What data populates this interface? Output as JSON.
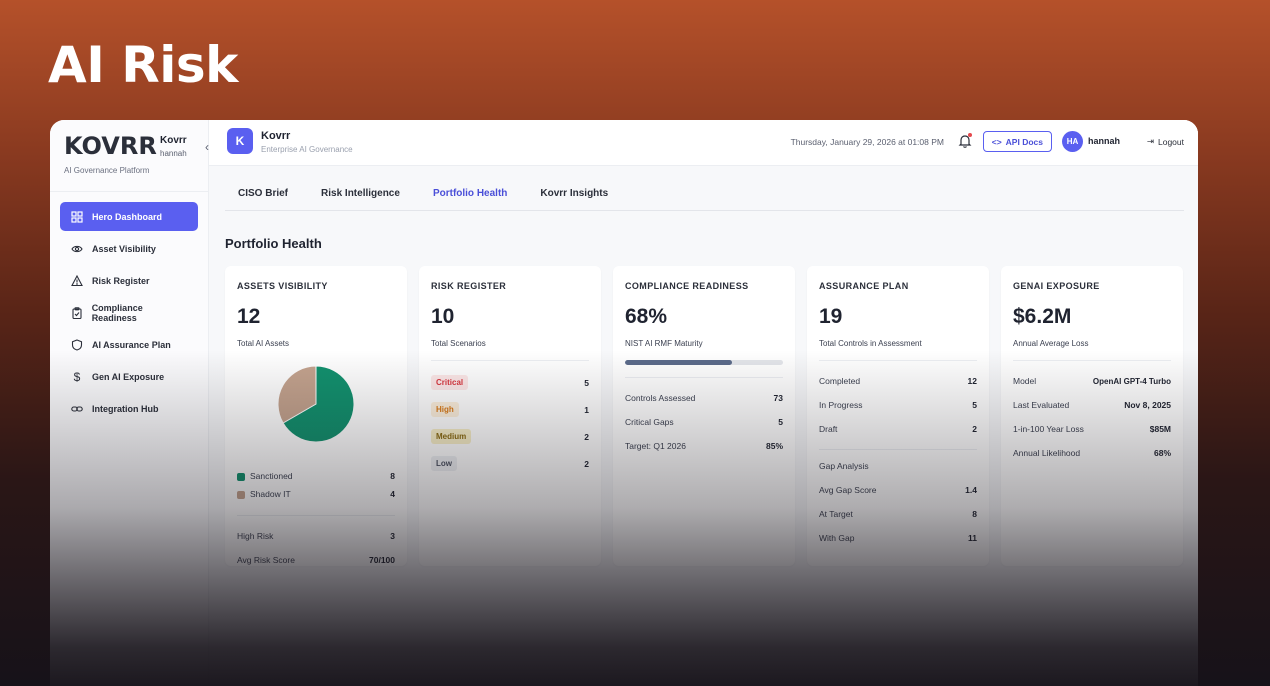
{
  "hero": {
    "title": "AI Risk"
  },
  "sidebar": {
    "logo": "KOVRR",
    "brand_name": "Kovrr",
    "brand_user": "hannah",
    "brand_sub": "AI Governance Platform",
    "items": [
      {
        "label": "Hero Dashboard",
        "icon": "grid-icon"
      },
      {
        "label": "Asset Visibility",
        "icon": "eye-icon"
      },
      {
        "label": "Risk Register",
        "icon": "warning-icon"
      },
      {
        "label": "Compliance Readiness",
        "icon": "clipboard-icon"
      },
      {
        "label": "AI Assurance Plan",
        "icon": "shield-icon"
      },
      {
        "label": "Gen AI Exposure",
        "icon": "dollar-icon"
      },
      {
        "label": "Integration Hub",
        "icon": "link-icon"
      }
    ]
  },
  "topbar": {
    "ws_initial": "K",
    "ws_name": "Kovrr",
    "ws_sub": "Enterprise AI Governance",
    "date": "Thursday, January 29, 2026 at 01:08 PM",
    "api_label": "API Docs",
    "avatar": "HA",
    "username": "hannah",
    "logout": "Logout"
  },
  "tabs": [
    "CISO Brief",
    "Risk Intelligence",
    "Portfolio Health",
    "Kovrr Insights"
  ],
  "page_title": "Portfolio Health",
  "cards": {
    "assets": {
      "title": "Assets Visibility",
      "value": "12",
      "caption": "Total AI Assets",
      "legend": [
        {
          "label": "Sanctioned",
          "value": "8",
          "color": "#12916e"
        },
        {
          "label": "Shadow IT",
          "value": "4",
          "color": "#c4a38e"
        }
      ],
      "rows": [
        {
          "label": "High Risk",
          "value": "3"
        },
        {
          "label": "Avg Risk Score",
          "value": "70/100"
        }
      ]
    },
    "risk": {
      "title": "Risk Register",
      "value": "10",
      "caption": "Total Scenarios",
      "rows": [
        {
          "label": "Critical",
          "value": "5",
          "fg": "#d9363e",
          "bg": "#fde8e8"
        },
        {
          "label": "High",
          "value": "1",
          "fg": "#d97a17",
          "bg": "#fdf0dd"
        },
        {
          "label": "Medium",
          "value": "2",
          "fg": "#8a6a10",
          "bg": "#f8efc8"
        },
        {
          "label": "Low",
          "value": "2",
          "fg": "#4b5160",
          "bg": "#eef0f3"
        }
      ]
    },
    "compliance": {
      "title": "Compliance Readiness",
      "value": "68%",
      "caption": "NIST AI RMF Maturity",
      "progress": 0.68,
      "rows": [
        {
          "label": "Controls Assessed",
          "value": "73"
        },
        {
          "label": "Critical Gaps",
          "value": "5"
        },
        {
          "label": "Target: Q1 2026",
          "value": "85%"
        }
      ]
    },
    "assurance": {
      "title": "Assurance Plan",
      "value": "19",
      "caption": "Total Controls in Assessment",
      "rows": [
        {
          "label": "Completed",
          "value": "12"
        },
        {
          "label": "In Progress",
          "value": "5"
        },
        {
          "label": "Draft",
          "value": "2"
        }
      ],
      "gap_title": "Gap Analysis",
      "gap_rows": [
        {
          "label": "Avg Gap Score",
          "value": "1.4"
        },
        {
          "label": "At Target",
          "value": "8"
        },
        {
          "label": "With Gap",
          "value": "11"
        }
      ]
    },
    "genai": {
      "title": "GenAI Exposure",
      "value": "$6.2M",
      "caption": "Annual Average Loss",
      "rows": [
        {
          "label": "Model",
          "value": "OpenAI GPT-4 Turbo"
        },
        {
          "label": "Last Evaluated",
          "value": "Nov 8, 2025"
        },
        {
          "label": "1-in-100 Year Loss",
          "value": "$85M"
        },
        {
          "label": "Annual Likelihood",
          "value": "68%"
        }
      ]
    }
  }
}
